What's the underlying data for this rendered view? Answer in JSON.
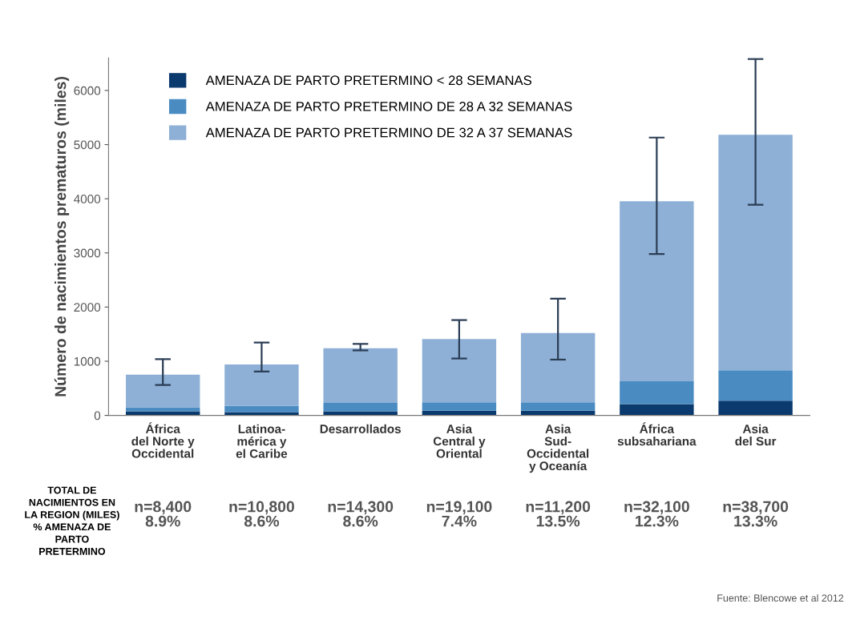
{
  "chart_data": {
    "type": "bar",
    "stacked": true,
    "ylabel": "Número de nacimientos prematuros (miles)",
    "categories": [
      "África\ndel Norte y\nOccidental",
      "Latinoa-\nmérica y\nel Caribe",
      "Desarrollados",
      "Asia\nCentral y\nOriental",
      "Asia\nSud-\nOccidental\ny Oceanía",
      "África\nsubsahariana",
      "Asia\ndel Sur"
    ],
    "series": [
      {
        "name": "AMENAZA DE PARTO PRETERMINO < 28 SEMANAS",
        "color": "#0b3a6e",
        "values": [
          75,
          60,
          75,
          85,
          85,
          210,
          270
        ]
      },
      {
        "name": "AMENAZA DE PARTO PRETERMINO DE 28 A 32 SEMANAS",
        "color": "#4a8cc2",
        "values": [
          75,
          120,
          155,
          155,
          155,
          420,
          565
        ]
      },
      {
        "name": "AMENAZA DE PARTO PRETERMINO DE 32 A 37 SEMANAS",
        "color": "#8eb0d6",
        "values": [
          600,
          760,
          1010,
          1170,
          1280,
          3325,
          4345
        ],
        "errors": [
          [
            560,
            1040
          ],
          [
            810,
            1345
          ],
          [
            1200,
            1320
          ],
          [
            1050,
            1760
          ],
          [
            1030,
            2155
          ],
          [
            2980,
            5130
          ],
          [
            3890,
            6580
          ]
        ]
      }
    ],
    "ylim": [
      0,
      6600
    ],
    "yticks": [
      0,
      1000,
      2000,
      3000,
      4000,
      5000,
      6000
    ],
    "grid": false,
    "legend": "top left",
    "annotations": [
      "TOTAL DE\nNACIMIENTOS EN\nLA REGION (MILES)\n% AMENAZA DE\nPARTO\nPRETERMINO",
      "n=8,400\n8.9%",
      "n=10,800\n8.6%",
      "n=14,300\n8.6%",
      "n=19,100\n7.4%",
      "n=11,200\n13.5%",
      "n=32,100\n12.3%",
      "n=38,700\n13.3%",
      "Fuente: Blencowe et al 2012"
    ]
  }
}
